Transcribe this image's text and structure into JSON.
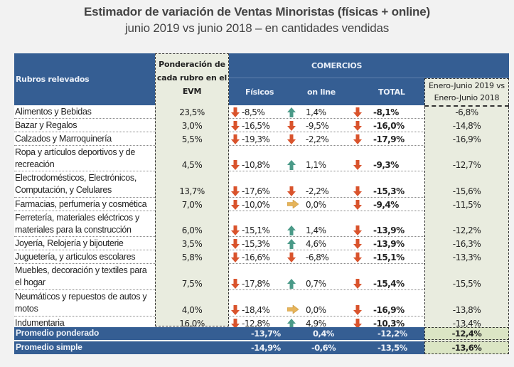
{
  "title": "Estimador de variación de Ventas Minoristas (físicas + online)",
  "subtitle": "junio 2019 vs junio 2018 – en cantidades vendidas",
  "colors": {
    "header_bg": "#355e93",
    "highlight_col_bg": "#e9ecdf",
    "summary_ytd_bg": "#dbe5c4",
    "down_arrow": "#d9532c",
    "up_arrow": "#4a9a88",
    "neutral_arrow": "#e6b45a"
  },
  "table": {
    "headers": {
      "rubros": "Rubros relevados",
      "weight_lines": [
        "Ponderación de",
        "cada rubro en el",
        "EVM"
      ],
      "group": "COMERCIOS",
      "fisicos": "Físicos",
      "online": "on line",
      "total": "TOTAL",
      "ytd_lines": [
        "Enero-Junio 2019 vs",
        "Enero-Junio 2018"
      ]
    },
    "rows": [
      {
        "label": "Alimentos y Bebidas",
        "weight": "23,5%",
        "fisicos": "-8,5%",
        "fisicos_icon": "arrow-down-icon",
        "online": "1,4%",
        "online_icon": "arrow-up-icon",
        "total": "-8,1%",
        "total_icon": "arrow-down-icon",
        "ytd": "-6,8%"
      },
      {
        "label": "Bazar y Regalos",
        "weight": "3,0%",
        "fisicos": "-16,5%",
        "fisicos_icon": "arrow-down-icon",
        "online": "-9,5%",
        "online_icon": "arrow-down-icon",
        "total": "-16,0%",
        "total_icon": "arrow-down-icon",
        "ytd": "-14,8%"
      },
      {
        "label": "Calzados y Marroquinería",
        "weight": "5,5%",
        "fisicos": "-19,3%",
        "fisicos_icon": "arrow-down-icon",
        "online": "-2,2%",
        "online_icon": "arrow-down-icon",
        "total": "-17,9%",
        "total_icon": "arrow-down-icon",
        "ytd": "-16,9%"
      },
      {
        "label": "Ropa y artículos deportivos y de recreación",
        "weight": "4,5%",
        "fisicos": "-10,8%",
        "fisicos_icon": "arrow-down-icon",
        "online": "1,1%",
        "online_icon": "arrow-up-icon",
        "total": "-9,3%",
        "total_icon": "arrow-down-icon",
        "ytd": "-12,7%"
      },
      {
        "label": "Electrodomésticos, Electrónicos, Computación, y Celulares",
        "weight": "13,7%",
        "fisicos": "-17,6%",
        "fisicos_icon": "arrow-down-icon",
        "online": "-2,2%",
        "online_icon": "arrow-down-icon",
        "total": "-15,3%",
        "total_icon": "arrow-down-icon",
        "ytd": "-15,6%"
      },
      {
        "label": "Farmacias, perfumería y cosmética",
        "weight": "7,0%",
        "fisicos": "-10,0%",
        "fisicos_icon": "arrow-down-icon",
        "online": "0,0%",
        "online_icon": "arrow-right-icon",
        "total": "-9,4%",
        "total_icon": "arrow-down-icon",
        "ytd": "-11,5%"
      },
      {
        "label": "Ferretería, materiales eléctricos y materiales para la construcción",
        "weight": "6,0%",
        "fisicos": "-15,1%",
        "fisicos_icon": "arrow-down-icon",
        "online": "1,4%",
        "online_icon": "arrow-up-icon",
        "total": "-13,9%",
        "total_icon": "arrow-down-icon",
        "ytd": "-12,2%"
      },
      {
        "label": "Joyería, Relojería y bijouterie",
        "weight": "3,5%",
        "fisicos": "-15,3%",
        "fisicos_icon": "arrow-down-icon",
        "online": "4,6%",
        "online_icon": "arrow-up-icon",
        "total": "-13,9%",
        "total_icon": "arrow-down-icon",
        "ytd": "-16,3%"
      },
      {
        "label": "Juguetería, y articulos escolares",
        "weight": "5,8%",
        "fisicos": "-16,6%",
        "fisicos_icon": "arrow-down-icon",
        "online": "-6,8%",
        "online_icon": "arrow-down-icon",
        "total": "-15,1%",
        "total_icon": "arrow-down-icon",
        "ytd": "-13,3%"
      },
      {
        "label": "Muebles, decoración y textiles para el hogar",
        "weight": "7,5%",
        "fisicos": "-17,8%",
        "fisicos_icon": "arrow-down-icon",
        "online": "0,7%",
        "online_icon": "arrow-up-icon",
        "total": "-15,4%",
        "total_icon": "arrow-down-icon",
        "ytd": "-15,5%"
      },
      {
        "label": "Neumáticos y repuestos de autos y motos",
        "weight": "4,0%",
        "fisicos": "-18,4%",
        "fisicos_icon": "arrow-down-icon",
        "online": "0,0%",
        "online_icon": "arrow-right-icon",
        "total": "-16,9%",
        "total_icon": "arrow-down-icon",
        "ytd": "-13,8%"
      },
      {
        "label": "Indumentaria",
        "weight": "16,0%",
        "fisicos": "-12,8%",
        "fisicos_icon": "arrow-down-icon",
        "online": "4,9%",
        "online_icon": "arrow-up-icon",
        "total": "-10,3%",
        "total_icon": "arrow-down-icon",
        "ytd": "-13,4%"
      }
    ],
    "summary": [
      {
        "label": "Promedio ponderado",
        "fisicos": "-13,7%",
        "online": "0,4%",
        "total": "-12,2%",
        "ytd": "-12,4%"
      },
      {
        "label": "Promedio simple",
        "fisicos": "-14,9%",
        "online": "-0,6%",
        "total": "-13,5%",
        "ytd": "-13,6%"
      }
    ]
  }
}
